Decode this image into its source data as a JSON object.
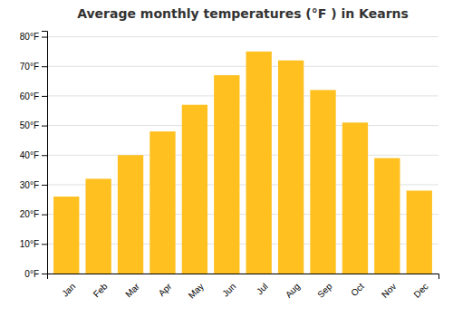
{
  "chart_data": {
    "type": "bar",
    "title": "Average monthly temperatures (°F ) in Kearns",
    "categories": [
      "Jan",
      "Feb",
      "Mar",
      "Apr",
      "May",
      "Jun",
      "Jul",
      "Aug",
      "Sep",
      "Oct",
      "Nov",
      "Dec"
    ],
    "values": [
      26,
      32,
      40,
      48,
      57,
      67,
      75,
      72,
      62,
      51,
      39,
      28
    ],
    "color": "#FFC020",
    "ylim": [
      0,
      82
    ],
    "yticks": [
      {
        "value": 0,
        "label": "0°F"
      },
      {
        "value": 10,
        "label": "10°F"
      },
      {
        "value": 20,
        "label": "20°F"
      },
      {
        "value": 30,
        "label": "30°F"
      },
      {
        "value": 40,
        "label": "40°F"
      },
      {
        "value": 50,
        "label": "50°F"
      },
      {
        "value": 60,
        "label": "60°F"
      },
      {
        "value": 70,
        "label": "70°F"
      },
      {
        "value": 80,
        "label": "80°F"
      }
    ],
    "grid": true
  }
}
